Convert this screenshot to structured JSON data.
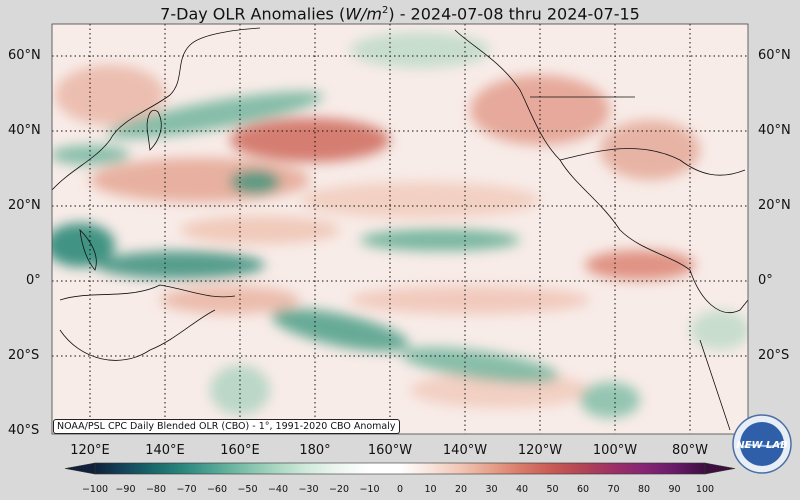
{
  "title": {
    "prefix": "7-Day OLR Anomalies (",
    "unit_w": "W/m",
    "unit_exp": "2",
    "suffix": ") - 2024-07-08 thru 2024-07-15"
  },
  "map": {
    "lat_labels": [
      "60°N",
      "40°N",
      "20°N",
      "0°",
      "20°S",
      "40°S"
    ],
    "lon_labels": [
      "120°E",
      "140°E",
      "160°E",
      "180°",
      "160°W",
      "140°W",
      "120°W",
      "100°W",
      "80°W"
    ],
    "source_note": "NOAA/PSL CPC Daily Blended OLR (CBO) - 1°, 1991-2020 CBO Anomaly"
  },
  "colorbar": {
    "ticks": [
      "−100",
      "−90",
      "−80",
      "−70",
      "−60",
      "−50",
      "−40",
      "−30",
      "−20",
      "−10",
      "0",
      "10",
      "20",
      "30",
      "40",
      "50",
      "60",
      "70",
      "80",
      "90",
      "100"
    ],
    "colors": [
      "#10203a",
      "#14475c",
      "#1a6b6c",
      "#2f8a80",
      "#56a896",
      "#82c2ac",
      "#acd8c3",
      "#d2ebdd",
      "#eef6f0",
      "#ffffff",
      "#ffffff",
      "#f8e4dc",
      "#f1c5b4",
      "#e6a08a",
      "#d87968",
      "#c85a55",
      "#b34456",
      "#9c3066",
      "#862575",
      "#6a1a6a",
      "#3d0f3f"
    ]
  },
  "logo": {
    "text": "NEW LAB"
  }
}
